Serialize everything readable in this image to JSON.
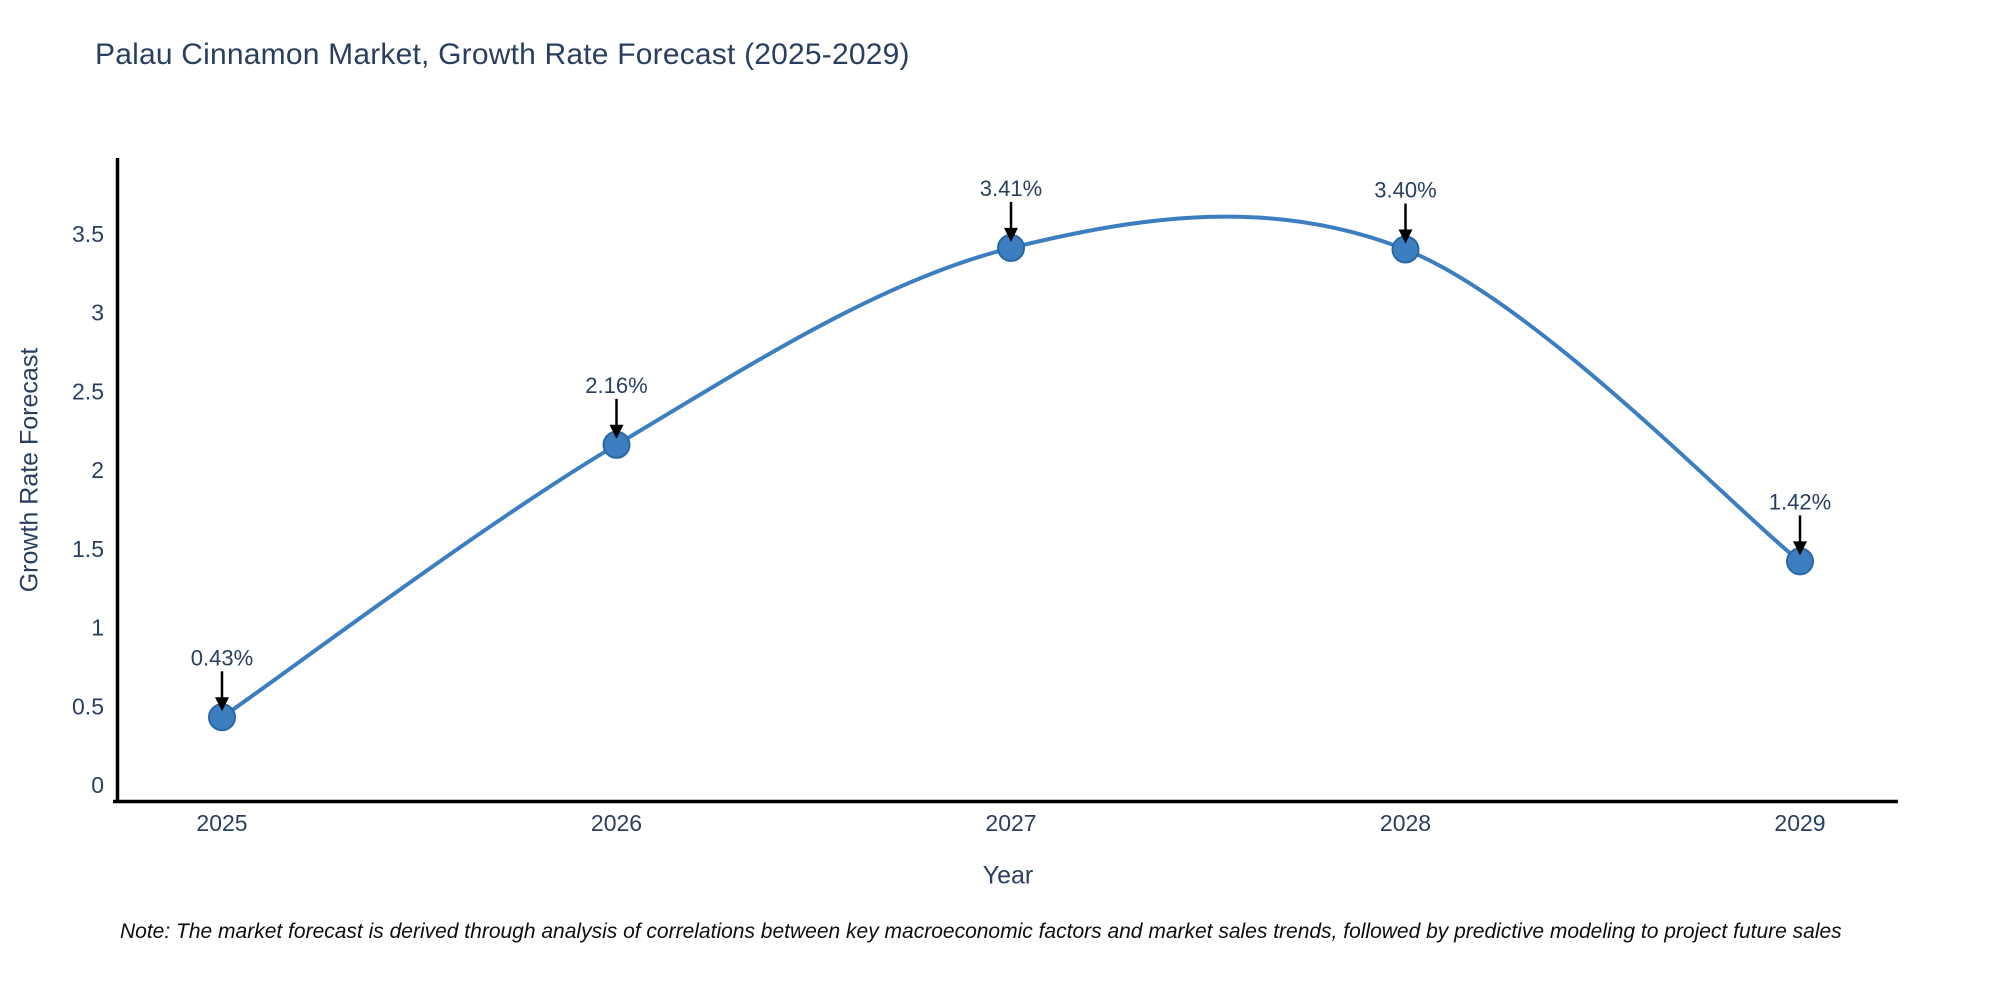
{
  "page": {
    "title": "Palau Cinnamon Market, Growth Rate Forecast (2025-2029)",
    "note": "Note: The market forecast is derived through analysis of correlations between key macroeconomic factors and market sales trends, followed by predictive modeling to project future sales"
  },
  "colors": {
    "line": "#3c7ebf",
    "marker_fill": "#3c7ebf",
    "marker_edge": "#2a68a5",
    "axis_line": "#000000",
    "title_text": "#2a3f5f",
    "tick_text": "#2a3f5f",
    "annotation_text": "#2a3f5f",
    "arrow": "#000000",
    "note_text": "#0d0d0d",
    "background": "#ffffff"
  },
  "chart_data": {
    "type": "line",
    "title": "Palau Cinnamon Market, Growth Rate Forecast (2025-2029)",
    "xlabel": "Year",
    "ylabel": "Growth Rate Forecast",
    "line_shape": "spline",
    "grid": false,
    "legend": false,
    "x": [
      2025,
      2026,
      2027,
      2028,
      2029
    ],
    "values": [
      0.43,
      2.16,
      3.41,
      3.4,
      1.42
    ],
    "point_labels": [
      "0.43%",
      "2.16%",
      "3.41%",
      "3.40%",
      "1.42%"
    ],
    "x_tick_labels": [
      "2025",
      "2026",
      "2027",
      "2028",
      "2029"
    ],
    "y_tick_labels": [
      "0",
      "0.5",
      "1",
      "1.5",
      "2",
      "2.5",
      "3",
      "3.5"
    ],
    "y_tick_values": [
      0,
      0.5,
      1,
      1.5,
      2,
      2.5,
      3,
      3.5
    ],
    "ylim": [
      -0.1,
      4.0
    ]
  }
}
